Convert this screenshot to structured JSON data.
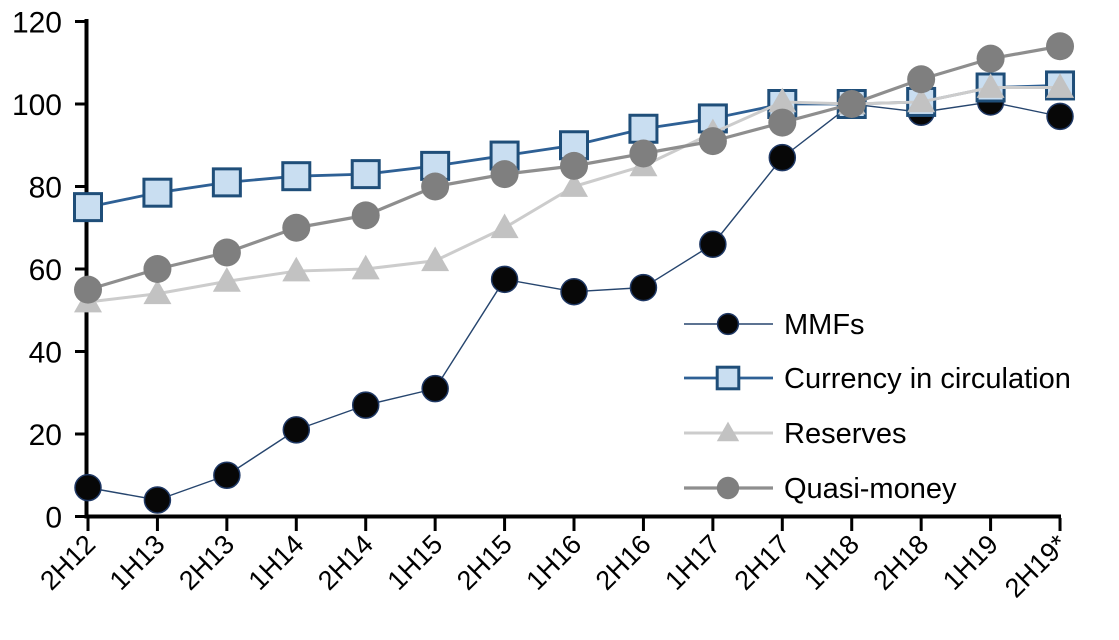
{
  "chart_data": {
    "type": "line",
    "title": "",
    "subtitle": "",
    "grid": false,
    "categories": [
      "2H12",
      "1H13",
      "2H13",
      "1H14",
      "2H14",
      "1H15",
      "2H15",
      "1H16",
      "2H16",
      "1H17",
      "2H17",
      "1H18",
      "2H18",
      "1H19",
      "2H19*"
    ],
    "x_axis": {
      "label": "",
      "tick_label_rotation_deg": -45,
      "axis_color": "#000000"
    },
    "y_axis": {
      "label": "",
      "min": 0,
      "max": 120,
      "step": 20,
      "tick_labels": [
        "0",
        "20",
        "40",
        "60",
        "80",
        "100",
        "120"
      ],
      "axis_color": "#000000"
    },
    "legend": {
      "position": "inside-right-middle",
      "entries": [
        "MMFs",
        "Currency in circulation",
        "Reserves",
        "Quasi-money"
      ]
    },
    "series": [
      {
        "name": "MMFs",
        "marker": "circle",
        "marker_fill": "#070707",
        "marker_stroke": "#1f3864",
        "marker_stroke_width": 1.5,
        "marker_size": 13,
        "line_color": "#26456e",
        "line_width": 1.4,
        "values": [
          7,
          4,
          10,
          21,
          27,
          31,
          57.5,
          54.5,
          55.5,
          66,
          87,
          100,
          98,
          100.5,
          97
        ]
      },
      {
        "name": "Currency in circulation",
        "marker": "square",
        "marker_fill": "#c9def1",
        "marker_stroke": "#1f4e79",
        "marker_stroke_width": 3,
        "marker_size": 27,
        "line_color": "#2e6095",
        "line_width": 2.8,
        "values": [
          75,
          78.5,
          81,
          82.5,
          83,
          85,
          87.5,
          90,
          94,
          96.5,
          100,
          100,
          100.5,
          104,
          104.5
        ]
      },
      {
        "name": "Reserves",
        "marker": "triangle",
        "marker_fill": "#c2c2c2",
        "marker_stroke": "#c2c2c2",
        "marker_stroke_width": 0,
        "marker_size": 28,
        "line_color": "#cccccc",
        "line_width": 3,
        "values": [
          52,
          54,
          57,
          59.5,
          60,
          62,
          70,
          80,
          85,
          93,
          100.5,
          100,
          100.5,
          104,
          104
        ]
      },
      {
        "name": "Quasi-money",
        "marker": "circle",
        "marker_fill": "#7f7f7f",
        "marker_stroke": "#7f7f7f",
        "marker_stroke_width": 0,
        "marker_size": 14,
        "line_color": "#8e8e8e",
        "line_width": 3.2,
        "values": [
          55,
          60,
          64,
          70,
          73,
          80,
          83,
          85,
          88,
          91,
          95.5,
          100,
          106,
          111,
          114
        ]
      }
    ]
  }
}
